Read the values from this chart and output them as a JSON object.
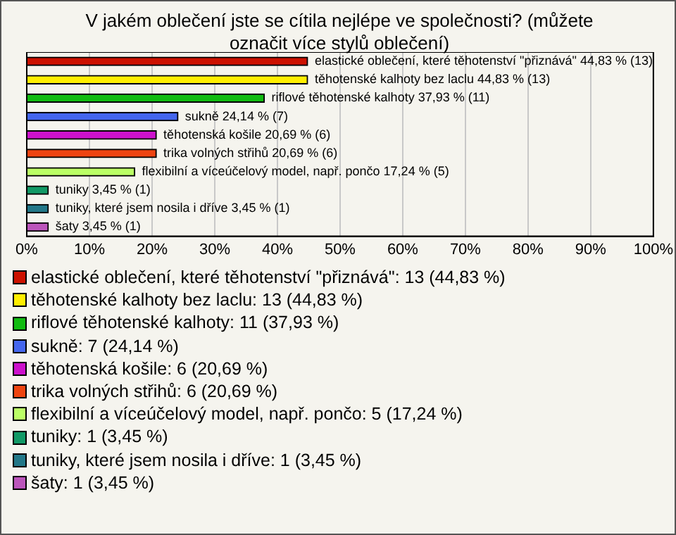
{
  "chart_data": {
    "type": "bar",
    "orientation": "horizontal",
    "title": "V jakém oblečení jste se cítila nejlépe ve společnosti? (můžete označit více stylů oblečení)",
    "categories": [
      "elastické oblečení, které těhotenství \"přiznává\"",
      "těhotenské kalhoty bez laclu",
      "riflové těhotenské kalhoty",
      "sukně",
      "těhotenská košile",
      "trika volných střihů",
      "flexibilní a víceúčelový model, např. pončo",
      "tuniky",
      "tuniky, které jsem nosila i dříve",
      "šaty"
    ],
    "values": [
      44.83,
      44.83,
      37.93,
      24.14,
      20.69,
      20.69,
      17.24,
      3.45,
      3.45,
      3.45
    ],
    "value_labels": [
      "44,83 % (13)",
      "44,83 % (13)",
      "37,93 % (11)",
      "24,14 % (7)",
      "20,69 % (6)",
      "20,69 % (6)",
      "17,24 % (5)",
      "3,45 % (1)",
      "3,45 % (1)",
      "3,45 % (1)"
    ],
    "colors": [
      "#cc1100",
      "#ffee00",
      "#11bb11",
      "#4466ee",
      "#cc11cc",
      "#ee4411",
      "#bbff66",
      "#119966",
      "#227788",
      "#bb55bb"
    ],
    "xlim": [
      0,
      100
    ],
    "xticks": [
      {
        "value": 0,
        "label": "0%"
      },
      {
        "value": 10,
        "label": "10%"
      },
      {
        "value": 20,
        "label": "20%"
      },
      {
        "value": 30,
        "label": "30%"
      },
      {
        "value": 40,
        "label": "40%"
      },
      {
        "value": 50,
        "label": "50%"
      },
      {
        "value": 60,
        "label": "60%"
      },
      {
        "value": 70,
        "label": "70%"
      },
      {
        "value": 80,
        "label": "80%"
      },
      {
        "value": 90,
        "label": "90%"
      },
      {
        "value": 100,
        "label": "100%"
      }
    ],
    "tick_labels": "x",
    "grid": "x",
    "annotations": [
      ": 13 (44,83 %)",
      ": 13 (44,83 %)",
      ": 11 (37,93 %)",
      ": 7 (24,14 %)",
      ": 6 (20,69 %)",
      ": 6 (20,69 %)",
      ": 5 (17,24 %)",
      ": 1 (3,45 %)",
      ": 1 (3,45 %)",
      ": 1 (3,45 %)"
    ]
  }
}
